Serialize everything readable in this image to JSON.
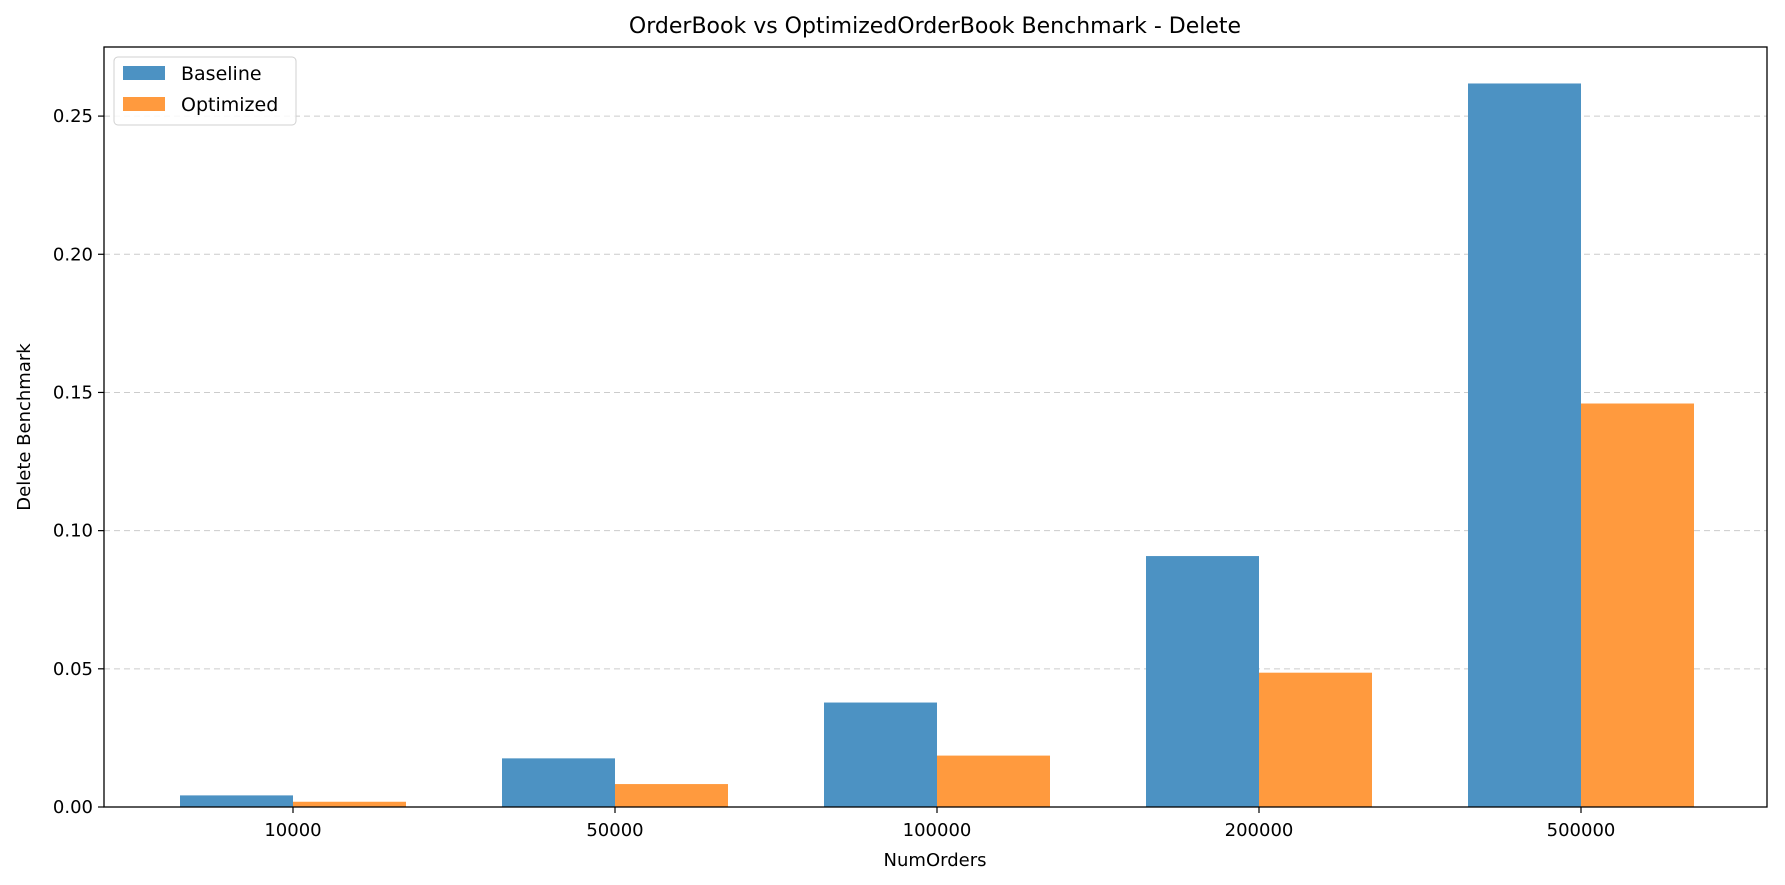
{
  "chart_data": {
    "type": "bar",
    "title": "OrderBook vs OptimizedOrderBook Benchmark - Delete",
    "xlabel": "NumOrders",
    "ylabel": "Delete Benchmark",
    "categories": [
      "10000",
      "50000",
      "100000",
      "200000",
      "500000"
    ],
    "series": [
      {
        "name": "Baseline",
        "color": "#4c92c3",
        "values": [
          0.0042,
          0.0176,
          0.0378,
          0.0908,
          0.2618
        ]
      },
      {
        "name": "Optimized",
        "color": "#ff9a3e",
        "values": [
          0.0019,
          0.0083,
          0.0186,
          0.0486,
          0.146
        ]
      }
    ],
    "ylim": [
      0,
      0.275
    ],
    "yticks": [
      "0.00",
      "0.05",
      "0.10",
      "0.15",
      "0.20",
      "0.25"
    ],
    "grid": "y-dashed",
    "legend_position": "top-left"
  }
}
